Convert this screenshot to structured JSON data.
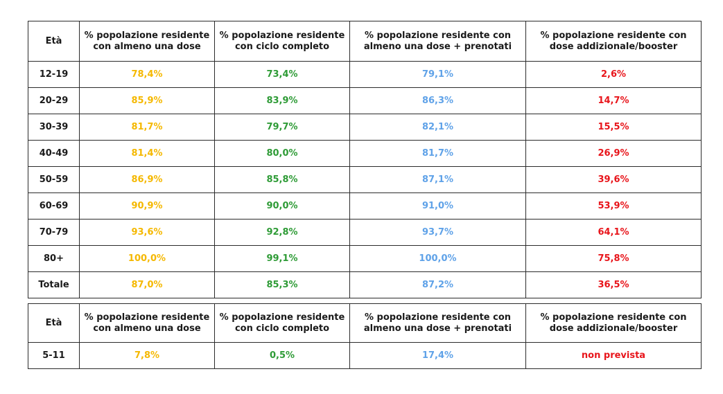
{
  "colors": {
    "col1": "#f5b800",
    "col2": "#2e9b36",
    "col3": "#5fa2e8",
    "col4": "#e8151b"
  },
  "headers": {
    "age": "Età",
    "col1": "% popolazione residente con almeno una dose",
    "col2": "% popolazione residente con ciclo completo",
    "col3": "% popolazione residente con almeno una dose + prenotati",
    "col4": "% popolazione residente con dose addizionale/booster"
  },
  "table1": {
    "rows": [
      {
        "age": "12-19",
        "c1": "78,4%",
        "c2": "73,4%",
        "c3": "79,1%",
        "c4": "2,6%"
      },
      {
        "age": "20-29",
        "c1": "85,9%",
        "c2": "83,9%",
        "c3": "86,3%",
        "c4": "14,7%"
      },
      {
        "age": "30-39",
        "c1": "81,7%",
        "c2": "79,7%",
        "c3": "82,1%",
        "c4": "15,5%"
      },
      {
        "age": "40-49",
        "c1": "81,4%",
        "c2": "80,0%",
        "c3": "81,7%",
        "c4": "26,9%"
      },
      {
        "age": "50-59",
        "c1": "86,9%",
        "c2": "85,8%",
        "c3": "87,1%",
        "c4": "39,6%"
      },
      {
        "age": "60-69",
        "c1": "90,9%",
        "c2": "90,0%",
        "c3": "91,0%",
        "c4": "53,9%"
      },
      {
        "age": "70-79",
        "c1": "93,6%",
        "c2": "92,8%",
        "c3": "93,7%",
        "c4": "64,1%"
      },
      {
        "age": "80+",
        "c1": "100,0%",
        "c2": "99,1%",
        "c3": "100,0%",
        "c4": "75,8%"
      },
      {
        "age": "Totale",
        "c1": "87,0%",
        "c2": "85,3%",
        "c3": "87,2%",
        "c4": "36,5%"
      }
    ]
  },
  "table2": {
    "rows": [
      {
        "age": "5-11",
        "c1": "7,8%",
        "c2": "0,5%",
        "c3": "17,4%",
        "c4": "non prevista"
      }
    ]
  }
}
